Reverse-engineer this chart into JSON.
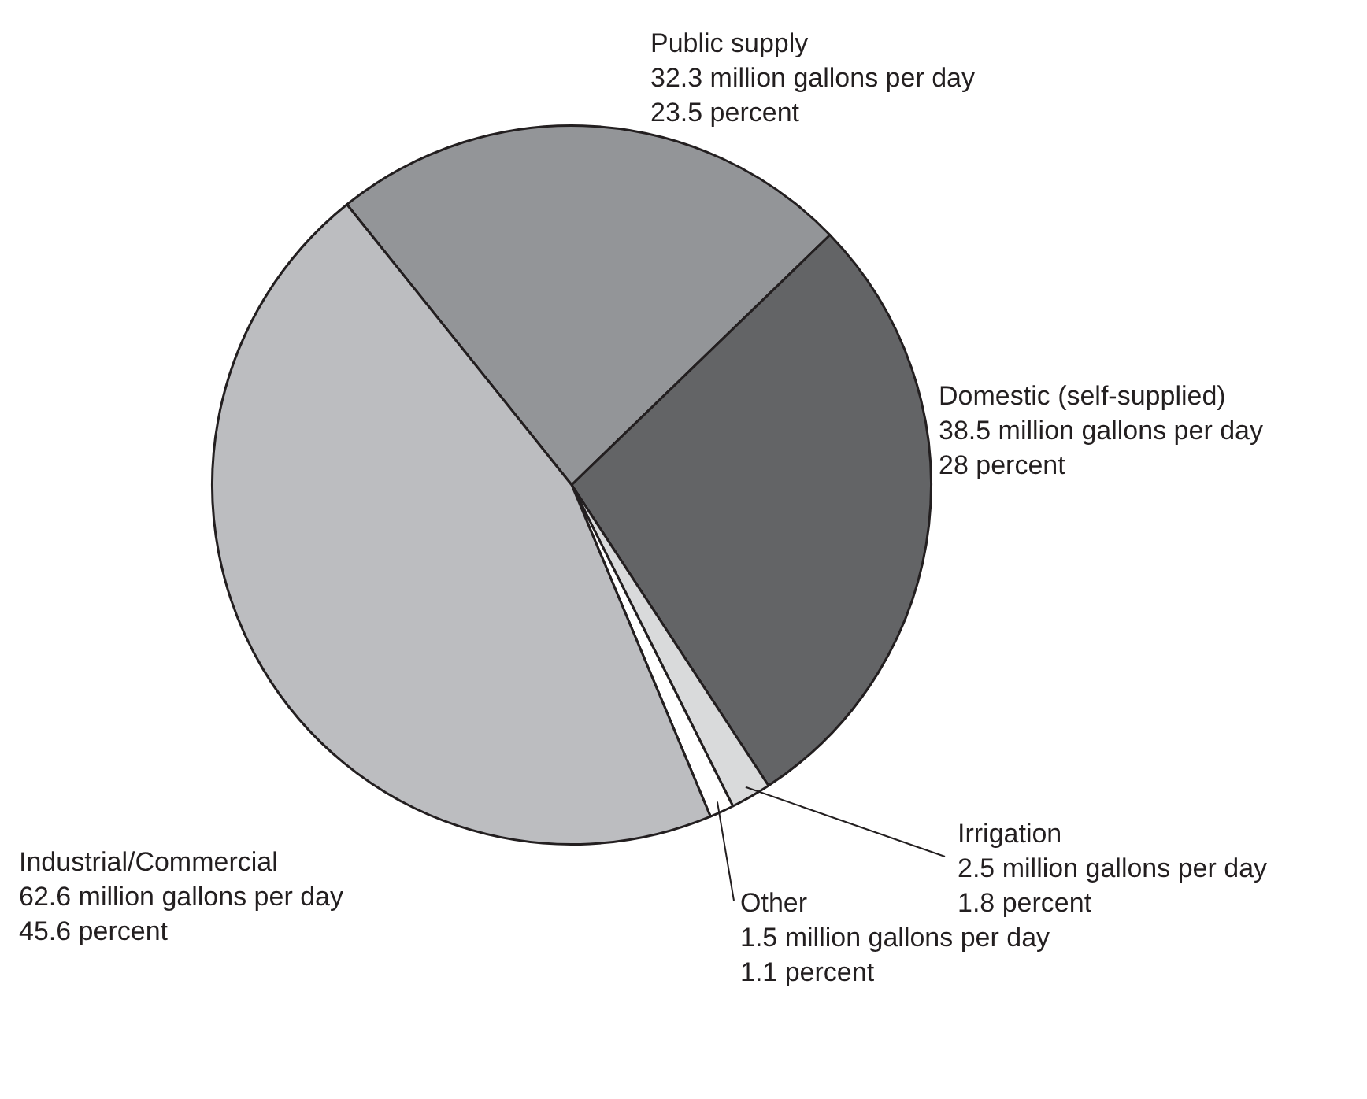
{
  "chart_data": {
    "type": "pie",
    "categories": [
      "Public supply",
      "Domestic (self-supplied)",
      "Irrigation",
      "Other",
      "Industrial/Commercial"
    ],
    "values": [
      32.3,
      38.5,
      2.5,
      1.5,
      62.6
    ],
    "value_labels": [
      "32.3 million gallons per day",
      "38.5 million gallons per day",
      "2.5 million gallons per day",
      "1.5 million gallons per day",
      "62.6 million gallons per day"
    ],
    "annotations": [
      {
        "text": "23.5 percent",
        "x": "Public supply"
      },
      {
        "text": "28 percent",
        "x": "Domestic (self-supplied)"
      },
      {
        "text": "1.8 percent",
        "x": "Irrigation"
      },
      {
        "text": "1.1 percent",
        "x": "Other"
      },
      {
        "text": "45.6 percent",
        "x": "Industrial/Commercial"
      }
    ],
    "colors": [
      "#939598",
      "#636466",
      "#d9dadb",
      "#ffffff",
      "#bcbdc0"
    ],
    "legend": false
  }
}
